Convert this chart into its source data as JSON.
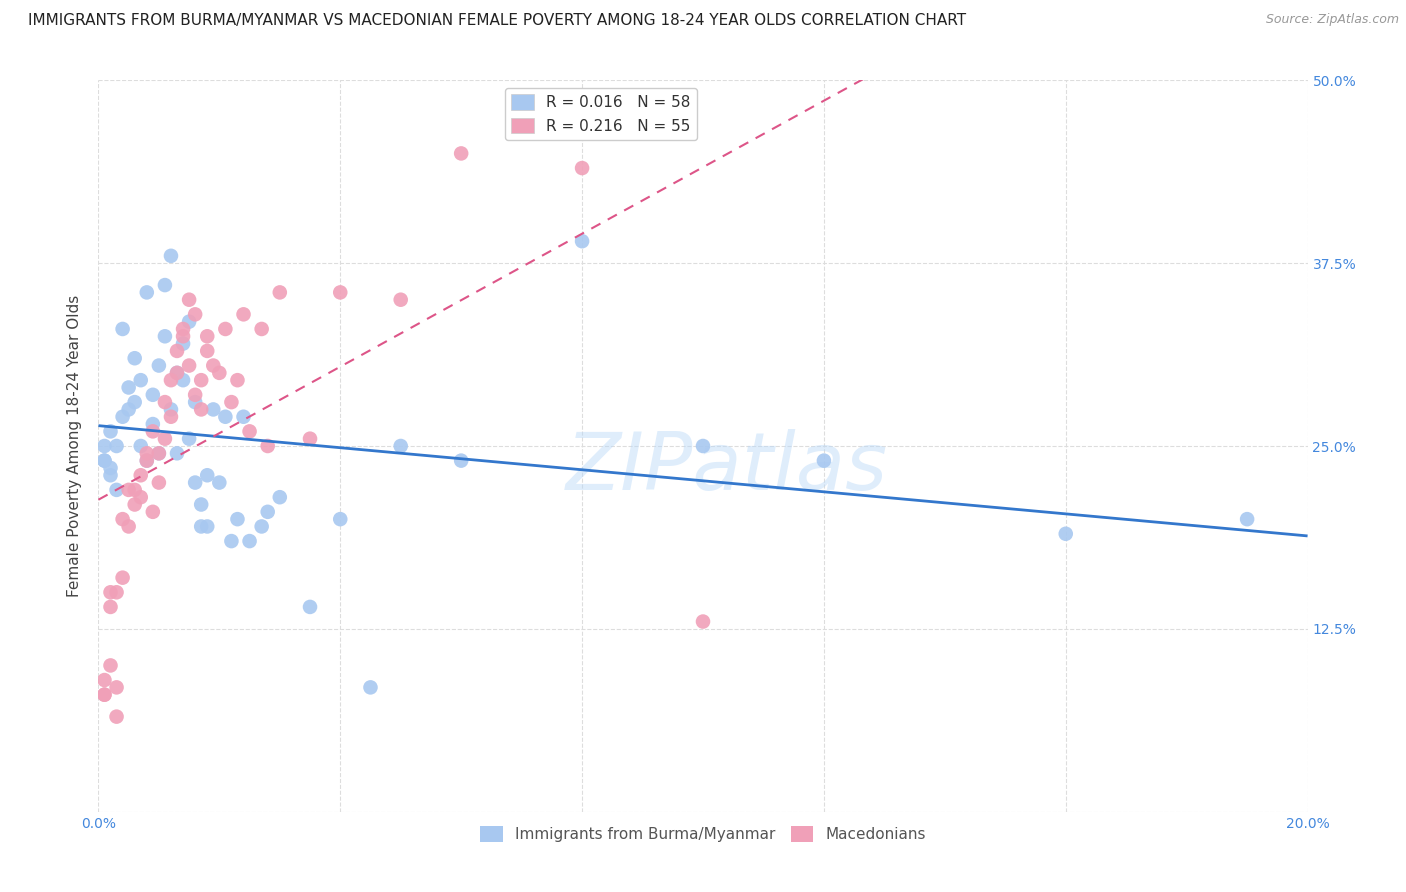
{
  "title": "IMMIGRANTS FROM BURMA/MYANMAR VS MACEDONIAN FEMALE POVERTY AMONG 18-24 YEAR OLDS CORRELATION CHART",
  "source": "Source: ZipAtlas.com",
  "ylabel": "Female Poverty Among 18-24 Year Olds",
  "xlim": [
    0.0,
    0.2
  ],
  "ylim": [
    0.0,
    0.5
  ],
  "xticks": [
    0.0,
    0.04,
    0.08,
    0.12,
    0.16,
    0.2
  ],
  "yticks": [
    0.0,
    0.125,
    0.25,
    0.375,
    0.5
  ],
  "blue_R": 0.016,
  "blue_N": 58,
  "pink_R": 0.216,
  "pink_N": 55,
  "blue_color": "#a8c8f0",
  "pink_color": "#f0a0b8",
  "blue_line_color": "#3377cc",
  "pink_line_color": "#dd5588",
  "watermark": "ZIPatlas",
  "background_color": "#ffffff",
  "grid_color": "#dddddd",
  "title_fontsize": 11,
  "axis_label_fontsize": 11,
  "tick_fontsize": 10,
  "legend_fontsize": 11,
  "blue_x": [
    0.001,
    0.002,
    0.001,
    0.003,
    0.002,
    0.001,
    0.004,
    0.003,
    0.002,
    0.005,
    0.004,
    0.006,
    0.005,
    0.007,
    0.006,
    0.008,
    0.007,
    0.009,
    0.008,
    0.01,
    0.009,
    0.011,
    0.01,
    0.012,
    0.011,
    0.013,
    0.012,
    0.014,
    0.013,
    0.015,
    0.014,
    0.016,
    0.015,
    0.017,
    0.016,
    0.018,
    0.017,
    0.019,
    0.018,
    0.02,
    0.021,
    0.022,
    0.023,
    0.024,
    0.025,
    0.027,
    0.028,
    0.03,
    0.035,
    0.04,
    0.045,
    0.05,
    0.06,
    0.08,
    0.1,
    0.12,
    0.16,
    0.19
  ],
  "blue_y": [
    0.24,
    0.23,
    0.25,
    0.22,
    0.26,
    0.24,
    0.27,
    0.25,
    0.235,
    0.29,
    0.33,
    0.31,
    0.275,
    0.295,
    0.28,
    0.355,
    0.25,
    0.285,
    0.24,
    0.305,
    0.265,
    0.325,
    0.245,
    0.38,
    0.36,
    0.3,
    0.275,
    0.32,
    0.245,
    0.335,
    0.295,
    0.28,
    0.255,
    0.195,
    0.225,
    0.195,
    0.21,
    0.275,
    0.23,
    0.225,
    0.27,
    0.185,
    0.2,
    0.27,
    0.185,
    0.195,
    0.205,
    0.215,
    0.14,
    0.2,
    0.085,
    0.25,
    0.24,
    0.39,
    0.25,
    0.24,
    0.19,
    0.2
  ],
  "pink_x": [
    0.001,
    0.002,
    0.001,
    0.003,
    0.002,
    0.001,
    0.003,
    0.002,
    0.004,
    0.003,
    0.005,
    0.004,
    0.006,
    0.005,
    0.007,
    0.006,
    0.008,
    0.007,
    0.009,
    0.008,
    0.01,
    0.009,
    0.011,
    0.01,
    0.012,
    0.011,
    0.013,
    0.012,
    0.014,
    0.013,
    0.015,
    0.014,
    0.016,
    0.015,
    0.017,
    0.016,
    0.018,
    0.017,
    0.019,
    0.018,
    0.02,
    0.021,
    0.022,
    0.023,
    0.024,
    0.025,
    0.027,
    0.028,
    0.03,
    0.035,
    0.04,
    0.05,
    0.06,
    0.08,
    0.1
  ],
  "pink_y": [
    0.08,
    0.15,
    0.09,
    0.065,
    0.1,
    0.08,
    0.085,
    0.14,
    0.16,
    0.15,
    0.22,
    0.2,
    0.21,
    0.195,
    0.23,
    0.22,
    0.245,
    0.215,
    0.205,
    0.24,
    0.245,
    0.26,
    0.255,
    0.225,
    0.27,
    0.28,
    0.3,
    0.295,
    0.325,
    0.315,
    0.305,
    0.33,
    0.34,
    0.35,
    0.295,
    0.285,
    0.315,
    0.275,
    0.305,
    0.325,
    0.3,
    0.33,
    0.28,
    0.295,
    0.34,
    0.26,
    0.33,
    0.25,
    0.355,
    0.255,
    0.355,
    0.35,
    0.45,
    0.44,
    0.13
  ]
}
